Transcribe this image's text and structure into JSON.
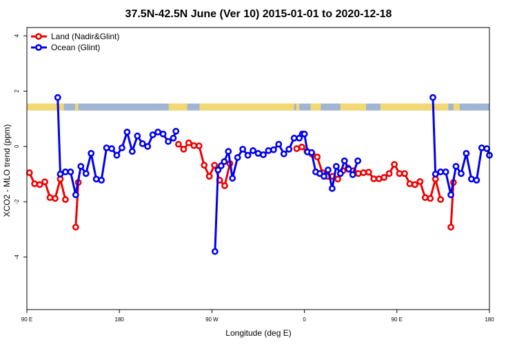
{
  "chart_data": {
    "type": "line",
    "title": "37.5N-42.5N June (Ver 10)   2015-01-01 to 2020-12-18",
    "xlabel": "Longitude (deg E)",
    "ylabel": "XCO2 - MLO trend (ppm)",
    "xlim": [
      90,
      540
    ],
    "ylim": [
      -5.9,
      4.3
    ],
    "x_ticks": [
      {
        "value": 90,
        "label": "90 E"
      },
      {
        "value": 180,
        "label": "180"
      },
      {
        "value": 270,
        "label": "90 W"
      },
      {
        "value": 360,
        "label": "0"
      },
      {
        "value": 450,
        "label": "90 E"
      },
      {
        "value": 540,
        "label": "180"
      }
    ],
    "y_ticks": [
      {
        "value": -4,
        "label": "-4"
      },
      {
        "value": -2,
        "label": "-2"
      },
      {
        "value": 0,
        "label": "0"
      },
      {
        "value": 2,
        "label": "2"
      },
      {
        "value": 4,
        "label": "4"
      }
    ],
    "grid": false,
    "legend_position": "top-left",
    "series": [
      {
        "name": "Land (Nadir&Glint)",
        "color": "#ee0000",
        "segments": [
          [
            [
              92.5,
              -0.95
            ],
            [
              97.5,
              -1.35
            ],
            [
              102.5,
              -1.38
            ],
            [
              107.5,
              -1.28
            ],
            [
              112.5,
              -1.85
            ],
            [
              117.5,
              -1.88
            ],
            [
              122.5,
              -1.18
            ],
            [
              127.5,
              -1.92
            ]
          ],
          [
            [
              137.5,
              -2.92
            ],
            [
              140,
              -1.3
            ]
          ],
          [
            [
              237.5,
              0.08
            ],
            [
              242.5,
              -0.1
            ],
            [
              247.5,
              0.13
            ],
            [
              252.5,
              0.03
            ],
            [
              257.5,
              0.02
            ],
            [
              262.5,
              -0.68
            ],
            [
              267.5,
              -1.08
            ],
            [
              272.5,
              -0.68
            ],
            [
              277.5,
              -1.22
            ],
            [
              282.5,
              -1.42
            ],
            [
              287.5,
              -0.62
            ]
          ],
          [
            [
              352.5,
              -0.08
            ],
            [
              357.5,
              -0.02
            ],
            [
              362.5,
              -0.18
            ],
            [
              367.5,
              -0.28
            ],
            [
              372.5,
              -0.38
            ],
            [
              377.5,
              -0.95
            ],
            [
              382.5,
              -1.08
            ],
            [
              387.5,
              -1.08
            ],
            [
              392.5,
              -1.18
            ],
            [
              397.5,
              -0.88
            ],
            [
              402.5,
              -0.78
            ],
            [
              407.5,
              -0.88
            ],
            [
              412.5,
              -0.98
            ],
            [
              417.5,
              -0.95
            ],
            [
              422.5,
              -0.93
            ],
            [
              427.5,
              -1.17
            ],
            [
              432.5,
              -1.17
            ],
            [
              437.5,
              -1.12
            ],
            [
              442.5,
              -0.98
            ],
            [
              447.5,
              -0.65
            ],
            [
              452.5,
              -0.98
            ],
            [
              457.5,
              -0.98
            ],
            [
              462.5,
              -1.35
            ],
            [
              467.5,
              -1.38
            ],
            [
              472.5,
              -1.27
            ],
            [
              477.5,
              -1.85
            ],
            [
              482.5,
              -1.88
            ],
            [
              487.5,
              -1.18
            ],
            [
              492.5,
              -1.92
            ]
          ],
          [
            [
              502.5,
              -2.92
            ],
            [
              505,
              -1.3
            ]
          ]
        ]
      },
      {
        "name": "Ocean (Glint)",
        "color": "#0000ee",
        "segments": [
          [
            [
              120,
              1.77
            ],
            [
              122.5,
              -1.0
            ],
            [
              127.5,
              -0.92
            ],
            [
              132.5,
              -0.92
            ],
            [
              137.5,
              -1.75
            ],
            [
              142.5,
              -0.72
            ],
            [
              147.5,
              -0.98
            ],
            [
              152.5,
              -0.25
            ],
            [
              157.5,
              -1.18
            ],
            [
              162.5,
              -1.22
            ],
            [
              167.5,
              -0.05
            ],
            [
              172.5,
              -0.08
            ],
            [
              177.5,
              -0.32
            ],
            [
              182.5,
              -0.05
            ],
            [
              187.5,
              0.52
            ],
            [
              192.5,
              -0.18
            ],
            [
              197.5,
              0.38
            ],
            [
              202.5,
              0.1
            ],
            [
              207.5,
              0.0
            ],
            [
              212.5,
              0.42
            ],
            [
              217.5,
              0.52
            ],
            [
              222.5,
              0.45
            ],
            [
              227.5,
              0.18
            ],
            [
              232.5,
              0.3
            ],
            [
              235,
              0.55
            ]
          ],
          [
            [
              273,
              -3.8
            ],
            [
              276,
              -0.85
            ],
            [
              279,
              -0.7
            ],
            [
              282,
              -0.55
            ],
            [
              286,
              -0.18
            ],
            [
              290,
              -1.15
            ],
            [
              295,
              -0.4
            ],
            [
              300,
              -0.1
            ],
            [
              305,
              -0.32
            ],
            [
              310,
              -0.15
            ],
            [
              315,
              -0.25
            ],
            [
              320,
              -0.3
            ],
            [
              325,
              -0.15
            ],
            [
              330,
              -0.12
            ],
            [
              335,
              0.08
            ],
            [
              340,
              -0.27
            ],
            [
              345,
              -0.1
            ],
            [
              350,
              0.3
            ],
            [
              355,
              0.3
            ],
            [
              358,
              0.45
            ],
            [
              360,
              0.45
            ],
            [
              363,
              -0.2
            ],
            [
              367,
              -0.22
            ],
            [
              371,
              -0.92
            ],
            [
              375,
              -0.98
            ],
            [
              379,
              -1.08
            ],
            [
              383,
              -0.85
            ],
            [
              387,
              -1.52
            ],
            [
              391,
              -0.72
            ],
            [
              395,
              -0.98
            ],
            [
              399,
              -0.52
            ],
            [
              403,
              -0.82
            ],
            [
              407,
              -1.02
            ],
            [
              412,
              -0.52
            ]
          ],
          [
            [
              485,
              1.77
            ],
            [
              487.5,
              -1.0
            ],
            [
              492.5,
              -0.92
            ],
            [
              497.5,
              -0.92
            ],
            [
              502.5,
              -1.75
            ],
            [
              507.5,
              -0.72
            ],
            [
              512.5,
              -0.98
            ],
            [
              517.5,
              -0.25
            ],
            [
              522.5,
              -1.18
            ],
            [
              527.5,
              -1.22
            ],
            [
              532.5,
              -0.05
            ],
            [
              537.5,
              -0.08
            ],
            [
              540,
              -0.32
            ]
          ]
        ]
      }
    ],
    "land_strip": {
      "y_range": [
        1.3,
        1.55
      ],
      "ocean_color": "#a0b4d4",
      "land_color": "#f2d873",
      "land_ranges": [
        [
          90,
          126
        ],
        [
          137,
          140
        ],
        [
          228,
          246
        ],
        [
          258,
          350
        ],
        [
          352,
          355
        ],
        [
          366,
          376
        ],
        [
          395,
          420
        ],
        [
          434,
          500
        ],
        [
          505,
          511
        ]
      ]
    }
  }
}
